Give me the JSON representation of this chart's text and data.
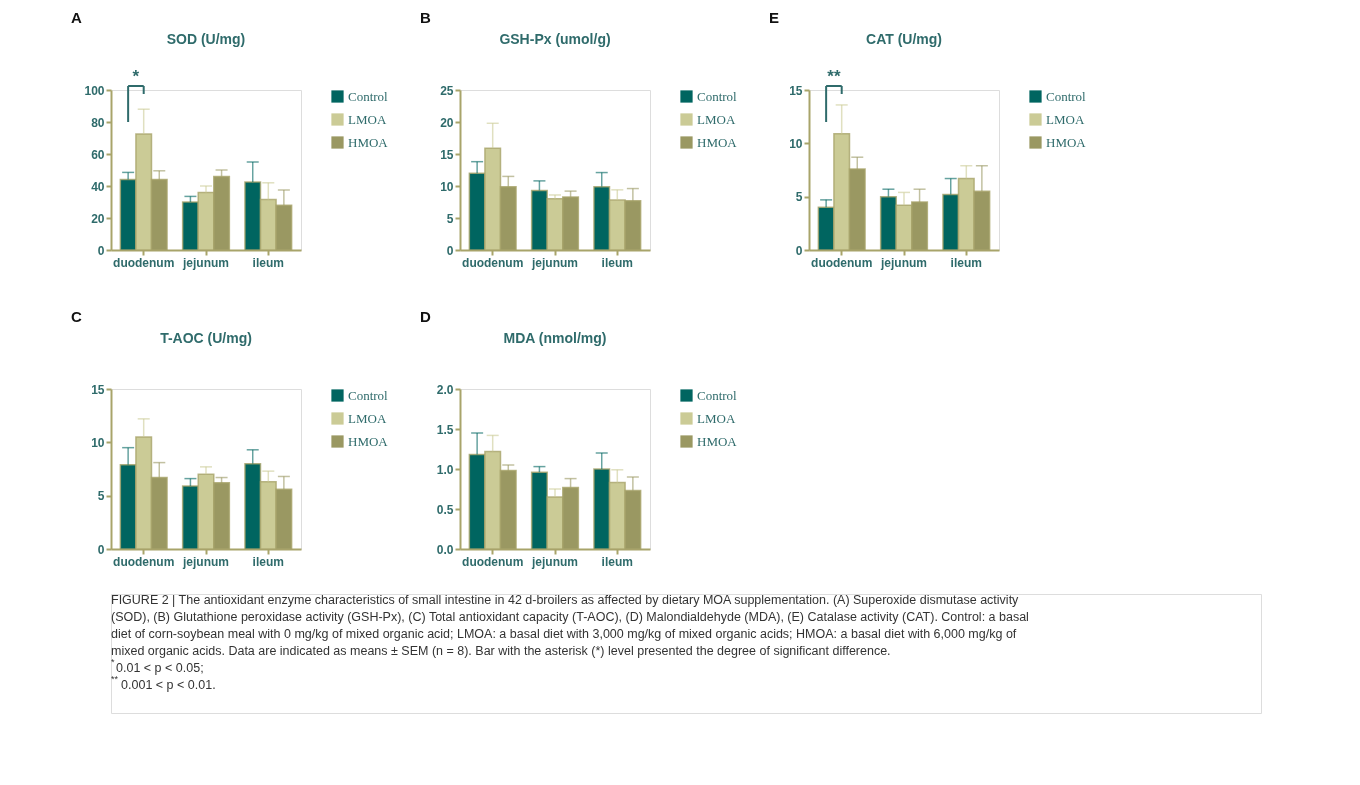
{
  "chart_data": [
    {
      "type": "bar",
      "title": "SOD (U/mg)",
      "annotations": [
        "A",
        "*"
      ],
      "categories": [
        "duodenum",
        "jejunum",
        "ileum"
      ],
      "series": [
        {
          "name": "Control",
          "color": "#006560",
          "values": [
            44,
            30,
            42.5
          ],
          "errors": [
            [
              44,
              48.5
            ],
            [
              30,
              33.5
            ],
            [
              42.5,
              55
            ]
          ]
        },
        {
          "name": "LMOA",
          "color": "#cbcb96",
          "values": [
            72.5,
            36,
            31.5
          ],
          "errors": [
            [
              72.5,
              88
            ],
            [
              36,
              40
            ],
            [
              31.5,
              42
            ]
          ]
        },
        {
          "name": "HMOA",
          "color": "#9a9862",
          "values": [
            44,
            46,
            28
          ],
          "errors": [
            [
              44,
              49.5
            ],
            [
              46,
              50
            ],
            [
              28,
              37.5
            ]
          ]
        }
      ],
      "ylim": [
        0,
        100
      ],
      "yticks": [
        0,
        20,
        40,
        60,
        80,
        100
      ],
      "grid": false,
      "legend": "right"
    },
    {
      "type": "bar",
      "title": "GSH-Px (umol/g)",
      "annotations": [
        "B"
      ],
      "categories": [
        "duodenum",
        "jejunum",
        "ileum"
      ],
      "series": [
        {
          "name": "Control",
          "color": "#006560",
          "values": [
            12,
            9.3,
            9.9
          ],
          "errors": [
            [
              12,
              13.8
            ],
            [
              9.3,
              10.8
            ],
            [
              9.9,
              12.1
            ]
          ]
        },
        {
          "name": "LMOA",
          "color": "#cbcb96",
          "values": [
            15.9,
            8,
            7.8
          ],
          "errors": [
            [
              15.9,
              19.8
            ],
            [
              8,
              8.6
            ],
            [
              7.8,
              9.4
            ]
          ]
        },
        {
          "name": "HMOA",
          "color": "#9a9862",
          "values": [
            9.9,
            8.3,
            7.7
          ],
          "errors": [
            [
              9.9,
              11.5
            ],
            [
              8.3,
              9.2
            ],
            [
              7.7,
              9.6
            ]
          ]
        }
      ],
      "ylim": [
        0,
        25
      ],
      "yticks": [
        0,
        5,
        10,
        15,
        20,
        25
      ],
      "grid": false,
      "legend": "right"
    },
    {
      "type": "bar",
      "title": "T-AOC (U/mg)",
      "annotations": [
        "C"
      ],
      "categories": [
        "duodenum",
        "jejunum",
        "ileum"
      ],
      "series": [
        {
          "name": "Control",
          "color": "#006560",
          "values": [
            7.9,
            5.9,
            8.0
          ],
          "errors": [
            [
              7.9,
              9.5
            ],
            [
              5.9,
              6.6
            ],
            [
              8.0,
              9.3
            ]
          ]
        },
        {
          "name": "LMOA",
          "color": "#cbcb96",
          "values": [
            10.5,
            7.0,
            6.3
          ],
          "errors": [
            [
              10.5,
              12.2
            ],
            [
              7.0,
              7.7
            ],
            [
              6.3,
              7.3
            ]
          ]
        },
        {
          "name": "HMOA",
          "color": "#9a9862",
          "values": [
            6.7,
            6.2,
            5.6
          ],
          "errors": [
            [
              6.7,
              8.1
            ],
            [
              6.2,
              6.7
            ],
            [
              5.6,
              6.8
            ]
          ]
        }
      ],
      "ylim": [
        0,
        15
      ],
      "yticks": [
        0,
        5,
        10,
        15
      ],
      "grid": false,
      "legend": "right"
    },
    {
      "type": "bar",
      "title": "MDA (nmol/mg)",
      "annotations": [
        "D"
      ],
      "categories": [
        "duodenum",
        "jejunum",
        "ileum"
      ],
      "series": [
        {
          "name": "Control",
          "color": "#006560",
          "values": [
            1.18,
            0.96,
            1.0
          ],
          "errors": [
            [
              1.18,
              1.45
            ],
            [
              0.96,
              1.03
            ],
            [
              1.0,
              1.2
            ]
          ]
        },
        {
          "name": "LMOA",
          "color": "#cbcb96",
          "values": [
            1.22,
            0.65,
            0.83
          ],
          "errors": [
            [
              1.22,
              1.42
            ],
            [
              0.65,
              0.75
            ],
            [
              0.83,
              0.99
            ]
          ]
        },
        {
          "name": "HMOA",
          "color": "#9a9862",
          "values": [
            0.98,
            0.77,
            0.73
          ],
          "errors": [
            [
              0.98,
              1.05
            ],
            [
              0.77,
              0.88
            ],
            [
              0.73,
              0.9
            ]
          ]
        }
      ],
      "ylim": [
        0,
        2
      ],
      "yticks": [
        {
          "value": 0,
          "label": "0.0"
        },
        {
          "value": 0.5,
          "label": "0.5"
        },
        {
          "value": 1,
          "label": "1.0"
        },
        {
          "value": 1.5,
          "label": "1.5"
        },
        {
          "value": 2,
          "label": "2.0"
        }
      ],
      "grid": false,
      "legend": "right"
    },
    {
      "type": "bar",
      "title": "CAT (U/mg)",
      "annotations": [
        "E",
        "**"
      ],
      "categories": [
        "duodenum",
        "jejunum",
        "ileum"
      ],
      "series": [
        {
          "name": "Control",
          "color": "#006560",
          "values": [
            4.0,
            5.0,
            5.2
          ],
          "errors": [
            [
              4.0,
              4.7
            ],
            [
              5.0,
              5.7
            ],
            [
              5.2,
              6.7
            ]
          ]
        },
        {
          "name": "LMOA",
          "color": "#cbcb96",
          "values": [
            10.9,
            4.2,
            6.7
          ],
          "errors": [
            [
              10.9,
              13.6
            ],
            [
              4.2,
              5.4
            ],
            [
              6.7,
              7.9
            ]
          ]
        },
        {
          "name": "HMOA",
          "color": "#9a9862",
          "values": [
            7.6,
            4.5,
            5.5
          ],
          "errors": [
            [
              7.6,
              8.7
            ],
            [
              4.5,
              5.7
            ],
            [
              5.5,
              7.9
            ]
          ]
        }
      ],
      "ylim": [
        0,
        15
      ],
      "yticks": [
        0,
        5,
        10,
        15
      ],
      "grid": false,
      "legend": "right"
    },
    {
      "type": "other",
      "annotations": [
        "FIGURE 2 | The antioxidant enzyme characteristics of small intestine in 42 d-broilers as affected by dietary MOA supplementation. (A) Superoxide dismutase activity",
        "(SOD), (B) Glutathione peroxidase activity (GSH-Px), (C) Total antioxidant capacity (T-AOC), (D) Malondialdehyde (MDA), (E) Catalase activity (CAT). Control: a basal",
        "diet of corn-soybean meal with 0 mg/kg of mixed organic acid; LMOA: a basal diet with 3,000 mg/kg of mixed organic acids; HMOA: a basal diet with 6,000 mg/kg of",
        "mixed organic acids. Data are indicated as means ± SEM (n = 8). Bar with the asterisk (*) level presented the degree of significant difference.",
        "$^{*}$0.01 < p < 0.05;",
        "$^{**}$0.001 < p < 0.01."
      ]
    }
  ]
}
